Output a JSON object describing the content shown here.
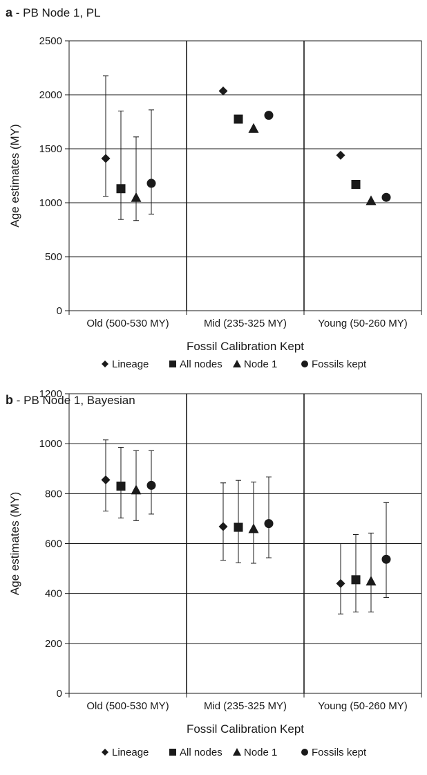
{
  "chart_data": [
    {
      "type": "scatter",
      "panel_letter": "a",
      "title": "- PB Node 1, PL",
      "xlabel": "Fossil Calibration Kept",
      "ylabel": "Age estimates (MY)",
      "ylim": [
        0,
        2500
      ],
      "yticks": [
        0,
        500,
        1000,
        1500,
        2000,
        2500
      ],
      "grid": true,
      "legend_position": "bottom",
      "categories": [
        "Old (500-530 MY)",
        "Mid (235-325 MY)",
        "Young (50-260 MY)"
      ],
      "series": [
        {
          "name": "Lineage",
          "marker": "diamond",
          "values": [
            1410,
            2035,
            1440
          ],
          "lower": [
            1060,
            null,
            null
          ],
          "upper": [
            2175,
            null,
            null
          ]
        },
        {
          "name": "All nodes",
          "marker": "square",
          "values": [
            1130,
            1775,
            1170
          ],
          "lower": [
            845,
            null,
            null
          ],
          "upper": [
            1850,
            null,
            null
          ]
        },
        {
          "name": "Node 1",
          "marker": "triangle",
          "values": [
            1050,
            1690,
            1020
          ],
          "lower": [
            835,
            null,
            null
          ],
          "upper": [
            1610,
            null,
            null
          ]
        },
        {
          "name": "Fossils kept",
          "marker": "circle",
          "values": [
            1180,
            1810,
            1050
          ],
          "lower": [
            895,
            null,
            null
          ],
          "upper": [
            1860,
            null,
            null
          ]
        }
      ]
    },
    {
      "type": "scatter",
      "panel_letter": "b",
      "title": "- PB Node 1, Bayesian",
      "xlabel": "Fossil Calibration Kept",
      "ylabel": "Age estimates (MY)",
      "ylim": [
        0,
        1200
      ],
      "yticks": [
        0,
        200,
        400,
        600,
        800,
        1000,
        1200
      ],
      "grid": true,
      "legend_position": "bottom",
      "categories": [
        "Old (500-530 MY)",
        "Mid (235-325 MY)",
        "Young (50-260 MY)"
      ],
      "series": [
        {
          "name": "Lineage",
          "marker": "diamond",
          "values": [
            855,
            668,
            440
          ],
          "lower": [
            730,
            533,
            318
          ],
          "upper": [
            1015,
            843,
            600
          ]
        },
        {
          "name": "All nodes",
          "marker": "square",
          "values": [
            830,
            665,
            455
          ],
          "lower": [
            702,
            523,
            326
          ],
          "upper": [
            985,
            853,
            636
          ]
        },
        {
          "name": "Node 1",
          "marker": "triangle",
          "values": [
            815,
            660,
            450
          ],
          "lower": [
            692,
            521,
            326
          ],
          "upper": [
            972,
            846,
            642
          ]
        },
        {
          "name": "Fossils kept",
          "marker": "circle",
          "values": [
            833,
            680,
            537
          ],
          "lower": [
            718,
            543,
            384
          ],
          "upper": [
            972,
            867,
            764
          ]
        }
      ]
    }
  ],
  "colors": {
    "marks": "#1a1a1a",
    "grid": "#1a1a1a",
    "background": "#ffffff"
  }
}
